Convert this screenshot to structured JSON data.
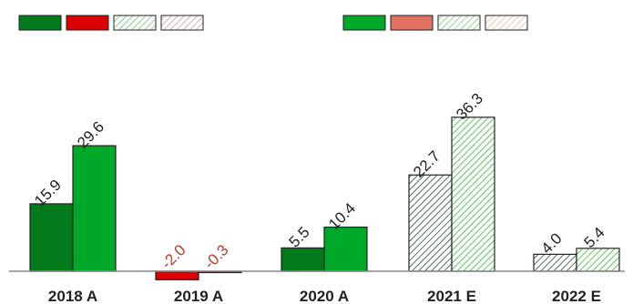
{
  "chart_data": {
    "type": "bar",
    "categories": [
      "2018 A",
      "2019 A",
      "2020 A",
      "2021 E",
      "2022 E"
    ],
    "series": [
      {
        "values": [
          15.9,
          -2.0,
          5.5,
          22.7,
          4.0
        ]
      },
      {
        "values": [
          29.6,
          -0.3,
          10.4,
          36.3,
          5.4
        ]
      }
    ],
    "value_labels": [
      [
        "15.9",
        "-2.0",
        "5.5",
        "22.7",
        "4.0"
      ],
      [
        "29.6",
        "-0.3",
        "10.4",
        "36.3",
        "5.4"
      ]
    ],
    "ylim": [
      -2.0,
      36.3
    ],
    "grid": false,
    "legend_placement": "top",
    "bar_style": {
      "actual": [
        "A",
        "A",
        "A",
        "E",
        "E"
      ],
      "estimate_hatched": true
    },
    "colors": {
      "series1_positive": "#007a1a",
      "series2_positive": "#00a82a",
      "negative_fill": "#dd0000",
      "negative_label": "#c0392b",
      "positive_label": "#222222",
      "hatch_series1": "#2a4f2e",
      "hatch_series2": "#33bb33",
      "axis": "#888888"
    },
    "legend": {
      "left": [
        {
          "fill": "#007a1a",
          "pattern": "solid"
        },
        {
          "fill": "#dd0000",
          "pattern": "solid"
        },
        {
          "fill": "#5cc05c",
          "pattern": "hatch"
        },
        {
          "fill": "#d08a8a",
          "pattern": "hatch"
        }
      ],
      "right": [
        {
          "fill": "#00a82a",
          "pattern": "solid"
        },
        {
          "fill": "#e07060",
          "pattern": "solid"
        },
        {
          "fill": "#66cc66",
          "pattern": "hatch"
        },
        {
          "fill": "#f0b090",
          "pattern": "hatch"
        }
      ]
    }
  }
}
